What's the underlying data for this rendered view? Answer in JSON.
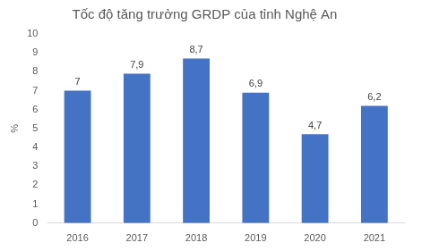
{
  "chart_data": {
    "type": "bar",
    "title": "Tốc độ tăng trưởng GRDP của tỉnh Nghệ An",
    "y_label": "%",
    "categories": [
      "2016",
      "2017",
      "2018",
      "2019",
      "2020",
      "2021"
    ],
    "values": [
      7,
      7.9,
      8.7,
      6.9,
      4.7,
      6.2
    ],
    "value_labels": [
      "7",
      "7,9",
      "8,7",
      "6,9",
      "4,7",
      "6,2"
    ],
    "color": "#4472c4",
    "ylim": [
      0,
      10
    ],
    "yticks": [
      0,
      1,
      2,
      3,
      4,
      5,
      6,
      7,
      8,
      9,
      10
    ],
    "grid": false,
    "data_labels": true
  }
}
